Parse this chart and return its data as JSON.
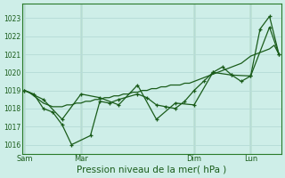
{
  "bg_color": "#ceeee8",
  "grid_color": "#b8ddd8",
  "line_color": "#1a5c1a",
  "marker_color": "#1a5c1a",
  "xlabel": "Pression niveau de la mer( hPa )",
  "xlabel_fontsize": 7.5,
  "ylim": [
    1015.5,
    1023.8
  ],
  "yticks": [
    1016,
    1017,
    1018,
    1019,
    1020,
    1021,
    1022,
    1023
  ],
  "xtick_labels": [
    "Sam",
    "Mar",
    "Dim",
    "Lun"
  ],
  "xtick_positions": [
    0,
    24,
    72,
    96
  ],
  "vline_positions": [
    0,
    24,
    72,
    96
  ],
  "total_points": 108,
  "series1_x": [
    0,
    2,
    4,
    6,
    8,
    10,
    12,
    14,
    16,
    18,
    20,
    22,
    24,
    26,
    28,
    30,
    32,
    34,
    36,
    38,
    40,
    42,
    44,
    46,
    48,
    50,
    52,
    54,
    56,
    58,
    60,
    62,
    64,
    66,
    68,
    70,
    72,
    74,
    76,
    78,
    80,
    82,
    84,
    86,
    88,
    90,
    92,
    94,
    96,
    98,
    100,
    102,
    104,
    106,
    108
  ],
  "series1_y": [
    1019.0,
    1018.9,
    1018.7,
    1018.5,
    1018.3,
    1018.2,
    1018.1,
    1018.1,
    1018.1,
    1018.2,
    1018.2,
    1018.3,
    1018.3,
    1018.4,
    1018.4,
    1018.5,
    1018.5,
    1018.6,
    1018.6,
    1018.7,
    1018.7,
    1018.8,
    1018.8,
    1018.9,
    1018.9,
    1019.0,
    1019.0,
    1019.1,
    1019.1,
    1019.2,
    1019.2,
    1019.3,
    1019.3,
    1019.3,
    1019.4,
    1019.4,
    1019.5,
    1019.6,
    1019.7,
    1019.8,
    1019.9,
    1020.0,
    1020.1,
    1020.2,
    1020.3,
    1020.4,
    1020.5,
    1020.7,
    1020.9,
    1021.0,
    1021.1,
    1021.2,
    1021.3,
    1021.5,
    1021.0
  ],
  "series2_x": [
    0,
    4,
    8,
    12,
    16,
    20,
    28,
    32,
    36,
    40,
    48,
    52,
    56,
    60,
    64,
    68,
    72,
    76,
    80,
    84,
    88,
    92,
    96,
    100,
    104,
    108
  ],
  "series2_y": [
    1019.0,
    1018.8,
    1018.0,
    1017.8,
    1017.1,
    1016.0,
    1016.5,
    1018.4,
    1018.3,
    1018.5,
    1018.8,
    1018.6,
    1018.2,
    1018.1,
    1018.0,
    1018.4,
    1019.0,
    1019.5,
    1020.0,
    1020.3,
    1019.85,
    1019.5,
    1019.8,
    1022.4,
    1023.1,
    1021.0
  ],
  "series3_x": [
    0,
    8,
    16,
    24,
    32,
    40,
    48,
    56,
    64,
    72,
    80,
    88,
    96,
    104,
    108
  ],
  "series3_y": [
    1019.0,
    1018.5,
    1017.4,
    1018.8,
    1018.6,
    1018.2,
    1019.3,
    1017.4,
    1018.3,
    1018.2,
    1020.0,
    1019.85,
    1019.8,
    1022.5,
    1021.0
  ]
}
